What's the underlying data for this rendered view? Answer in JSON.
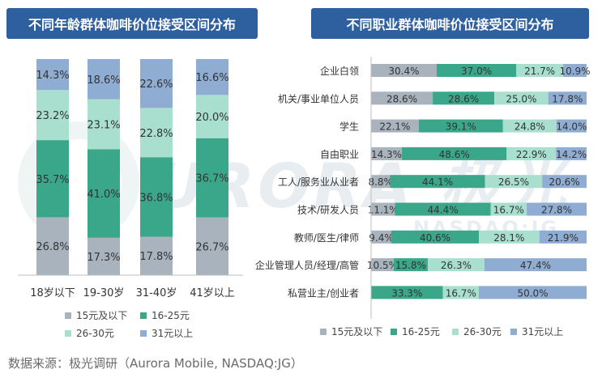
{
  "colors": {
    "title_bg": "#2e5f9e",
    "s1": "#a9b3bd",
    "s2": "#3aa78a",
    "s3": "#a8dfcf",
    "s4": "#8facd3"
  },
  "legend": [
    "15元及以下",
    "16-25元",
    "26-30元",
    "31元以上"
  ],
  "watermark": "URORA 极光",
  "watermark_sub": "NASDAQ:JG",
  "source": "数据来源：极光调研（Aurora Mobile, NASDAQ:JG）",
  "chart_data": [
    {
      "type": "bar",
      "stacked": true,
      "orientation": "vertical",
      "title": "不同年龄群体咖啡价位接受区间分布",
      "categories": [
        "18岁以下",
        "19-30岁",
        "31-40岁",
        "41岁以上"
      ],
      "series": [
        {
          "name": "15元及以下",
          "values": [
            26.8,
            17.3,
            17.8,
            26.7
          ]
        },
        {
          "name": "16-25元",
          "values": [
            35.7,
            41.0,
            36.8,
            36.7
          ]
        },
        {
          "name": "26-30元",
          "values": [
            23.2,
            23.1,
            22.8,
            20.0
          ]
        },
        {
          "name": "31元以上",
          "values": [
            14.3,
            18.6,
            22.6,
            16.6
          ]
        }
      ],
      "ylim": [
        0,
        100
      ],
      "grid": false,
      "legend_position": "bottom"
    },
    {
      "type": "bar",
      "stacked": true,
      "orientation": "horizontal",
      "title": "不同职业群体咖啡价位接受区间分布",
      "categories": [
        "企业白领",
        "机关/事业单位人员",
        "学生",
        "自由职业",
        "工人/服务业从业者",
        "技术/研发人员",
        "教师/医生/律师",
        "企业管理人员/经理/高管",
        "私营业主/创业者"
      ],
      "series": [
        {
          "name": "15元及以下",
          "values": [
            30.4,
            28.6,
            22.1,
            14.3,
            8.8,
            11.1,
            9.4,
            10.5,
            0
          ]
        },
        {
          "name": "16-25元",
          "values": [
            37.0,
            28.6,
            39.1,
            48.6,
            44.1,
            44.4,
            40.6,
            15.8,
            33.3
          ]
        },
        {
          "name": "26-30元",
          "values": [
            21.7,
            25.0,
            24.8,
            22.9,
            26.5,
            16.7,
            28.1,
            26.3,
            16.7
          ]
        },
        {
          "name": "31元以上",
          "values": [
            10.9,
            17.8,
            14.0,
            14.2,
            20.6,
            27.8,
            21.9,
            47.4,
            50.0
          ]
        }
      ],
      "xlim": [
        0,
        100
      ],
      "grid": false,
      "legend_position": "bottom"
    }
  ]
}
